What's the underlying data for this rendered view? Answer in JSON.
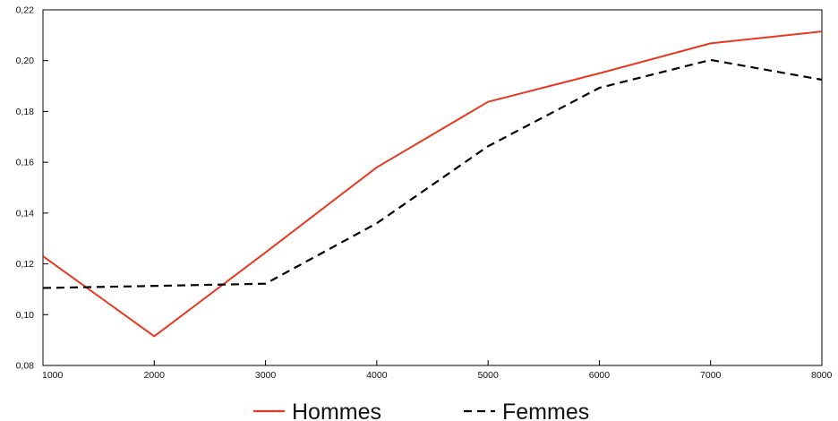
{
  "chart_data": {
    "type": "line",
    "x": [
      1000,
      2000,
      3000,
      4000,
      5000,
      6000,
      7000,
      8000
    ],
    "x_tick_labels": [
      "1000",
      "2000",
      "3000",
      "4000",
      "5000",
      "6000",
      "7000",
      "8000"
    ],
    "y_tick_labels": [
      "0,08",
      "0,10",
      "0,12",
      "0,14",
      "0,16",
      "0,18",
      "0,20",
      "0,22"
    ],
    "y_ticks": [
      0.08,
      0.1,
      0.12,
      0.14,
      0.16,
      0.18,
      0.2,
      0.22
    ],
    "xlim": [
      1000,
      8000
    ],
    "ylim": [
      0.08,
      0.22
    ],
    "grid": false,
    "legend_position": "bottom",
    "series": [
      {
        "name": "Hommes",
        "color": "#e8381f",
        "style": "solid",
        "values": [
          0.123,
          0.0915,
          0.1245,
          0.158,
          0.1838,
          0.195,
          0.2068,
          0.2115
        ]
      },
      {
        "name": "Femmes",
        "color": "#000000",
        "style": "dashed",
        "values": [
          0.1105,
          0.1113,
          0.1122,
          0.136,
          0.1663,
          0.1893,
          0.2003,
          0.1925
        ]
      }
    ]
  }
}
